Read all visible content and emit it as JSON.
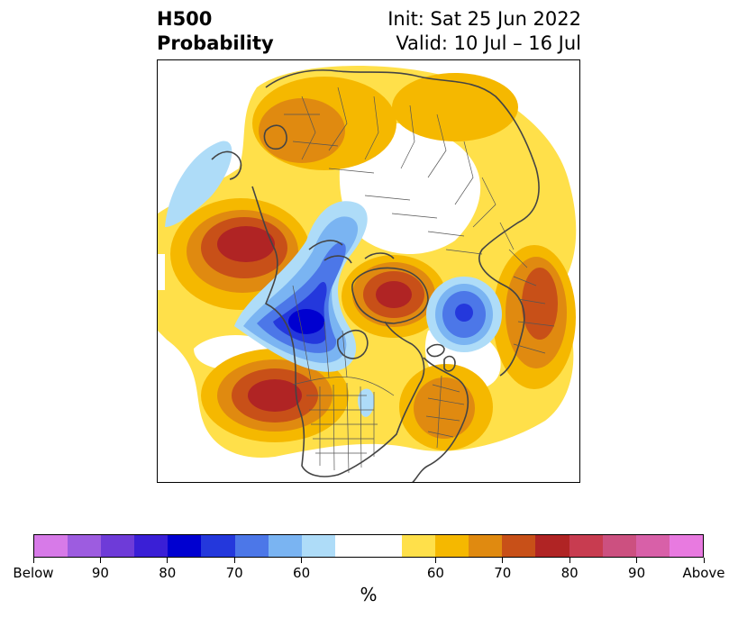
{
  "title": {
    "left_line1": "H500",
    "left_line2": "Probability",
    "right_line1": "Init: Sat 25 Jun 2022",
    "right_line2": "Valid: 10 Jul – 16 Jul"
  },
  "map": {
    "projection": "north-polar-stereographic",
    "features": [
      "coastlines",
      "country-borders",
      "us-state-borders",
      "canadian-province-borders"
    ]
  },
  "colorbar": {
    "unit_label": "%",
    "labels": [
      "Below",
      "90",
      "80",
      "70",
      "60",
      "60",
      "70",
      "80",
      "90",
      "Above"
    ],
    "colors": [
      "#d77ae8",
      "#9d5ce0",
      "#6e3bd8",
      "#3a1fd6",
      "#0000d0",
      "#2438dc",
      "#4c77e8",
      "#7ab4f2",
      "#aedcf8",
      "#ffffff",
      "#ffe04a",
      "#f5b800",
      "#e08a10",
      "#c85018",
      "#b02424",
      "#c83c50",
      "#cc5080",
      "#d860a8",
      "#e87ae0"
    ]
  }
}
